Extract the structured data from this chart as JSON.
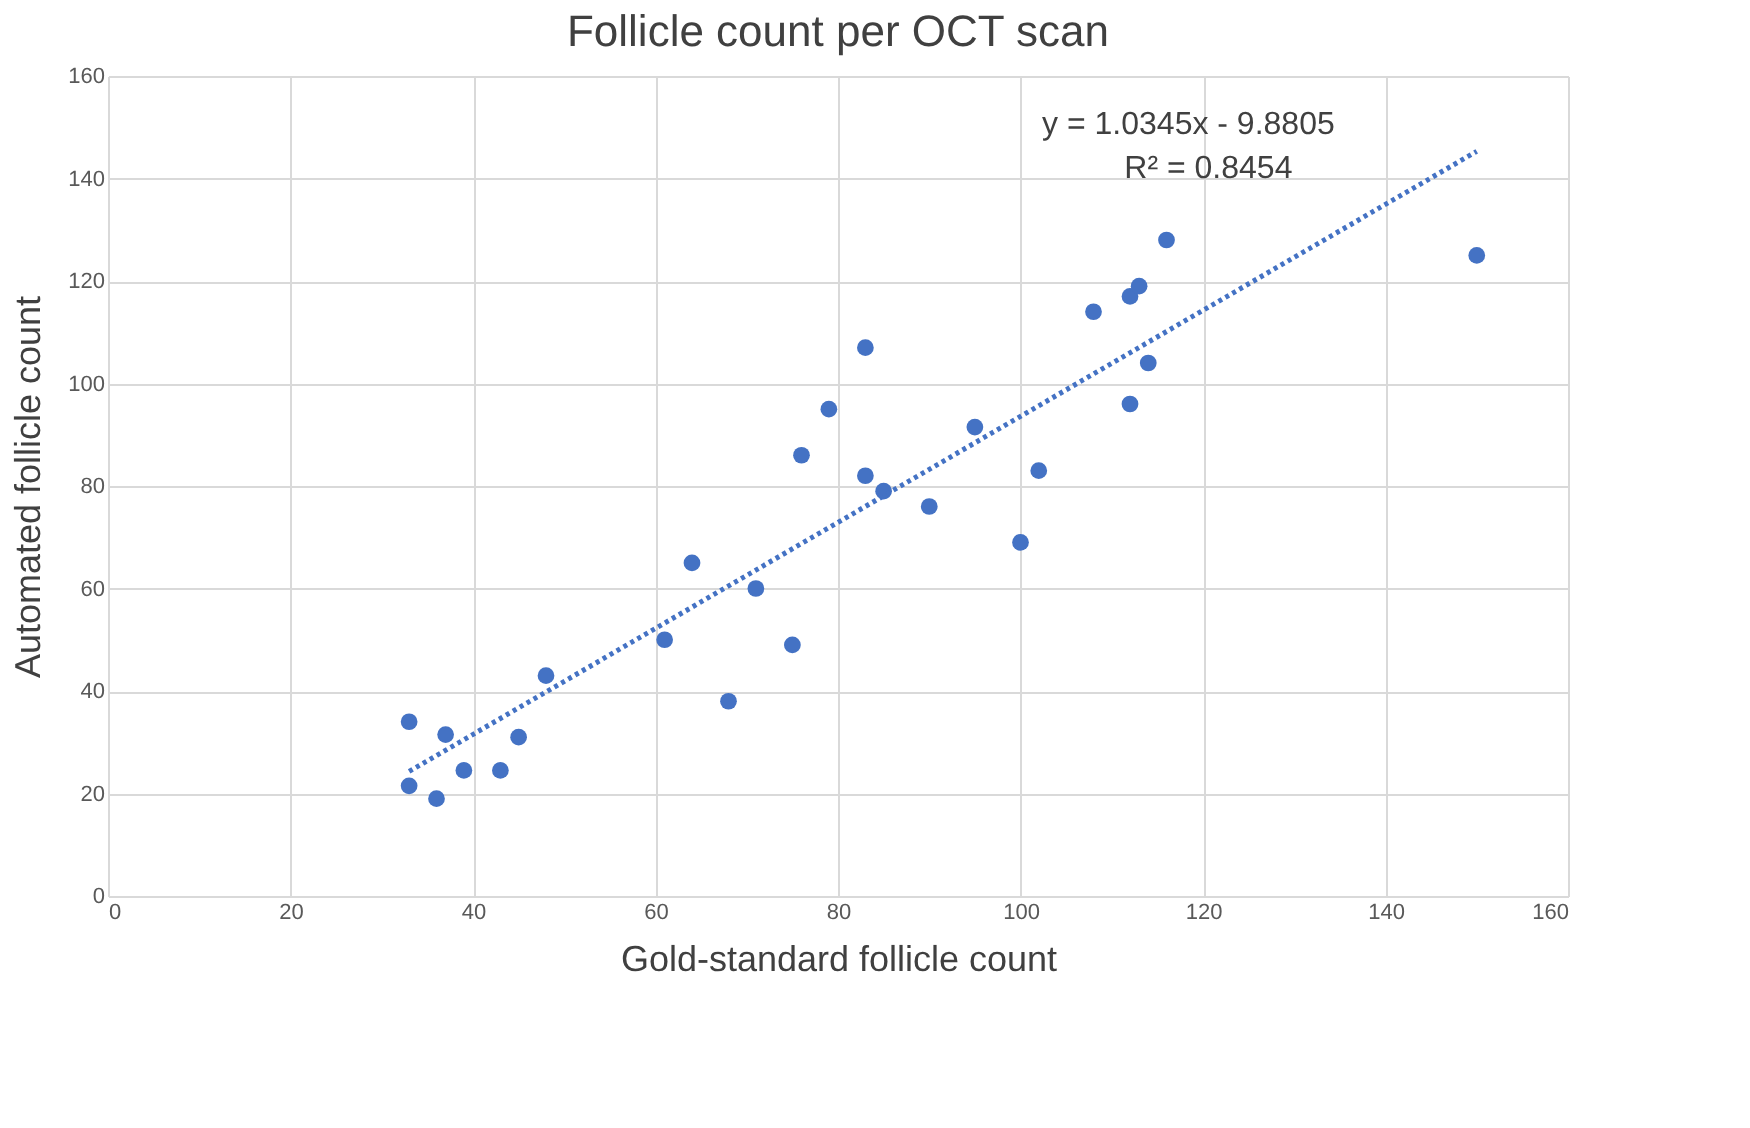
{
  "chart_data": {
    "type": "scatter",
    "title": "Follicle count per OCT scan",
    "xlabel": "Gold-standard follicle count",
    "ylabel": "Automated follicle count",
    "xlim": [
      0,
      160
    ],
    "xticks": [
      0,
      20,
      40,
      60,
      80,
      100,
      120,
      140,
      160
    ],
    "ylim": [
      0,
      160
    ],
    "yticks": [
      0,
      20,
      40,
      60,
      80,
      100,
      120,
      140,
      160
    ],
    "grid": true,
    "marker": "circle",
    "series": [
      {
        "color": "#4472c4",
        "x": [
          33,
          33,
          36,
          37,
          39,
          43,
          45,
          48,
          61,
          64,
          68,
          71,
          75,
          76,
          79,
          83,
          83,
          85,
          90,
          95,
          100,
          102,
          108,
          112,
          113,
          112,
          114,
          116,
          150
        ],
        "values": [
          34,
          21.5,
          19,
          31.5,
          24.5,
          24.5,
          31,
          43,
          50,
          65,
          38,
          60,
          49,
          86,
          95,
          107,
          82,
          79,
          76,
          91.5,
          69,
          83,
          114,
          117,
          119,
          96,
          104,
          128,
          125
        ]
      },
      {
        "type": "line",
        "marker": "none",
        "line_style": "dotted",
        "color": "#4472c4",
        "x": [
          33,
          150
        ],
        "values": [
          24.3,
          145.3
        ]
      }
    ],
    "annotations": [
      "y = 1.0345x - 9.8805",
      "R² = 0.8454"
    ]
  }
}
